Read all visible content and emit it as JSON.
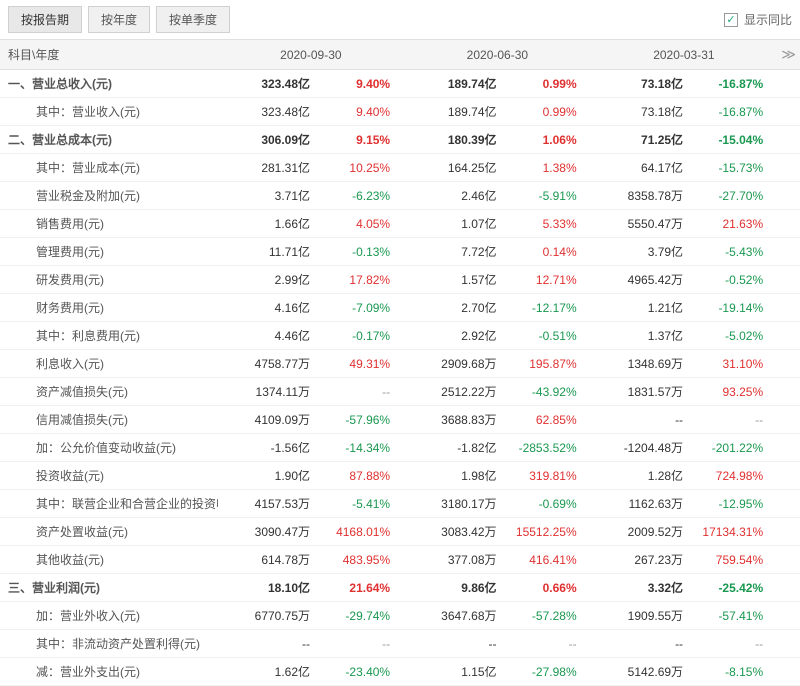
{
  "tabs": {
    "t0": "按报告期",
    "t1": "按年度",
    "t2": "按单季度"
  },
  "show_yoy_label": "显示同比",
  "header": {
    "label": "科目\\年度",
    "p0": "2020-09-30",
    "p1": "2020-06-30",
    "p2": "2020-03-31"
  },
  "rows": [
    {
      "label": "一、营业总收入(元)",
      "bold": true,
      "indent": 0,
      "v0": "323.48亿",
      "c0": "9.40%",
      "s0": "red",
      "v1": "189.74亿",
      "c1": "0.99%",
      "s1": "red",
      "v2": "73.18亿",
      "c2": "-16.87%",
      "s2": "green"
    },
    {
      "label": "其中：营业收入(元)",
      "indent": 1,
      "v0": "323.48亿",
      "c0": "9.40%",
      "s0": "red",
      "v1": "189.74亿",
      "c1": "0.99%",
      "s1": "red",
      "v2": "73.18亿",
      "c2": "-16.87%",
      "s2": "green"
    },
    {
      "label": "二、营业总成本(元)",
      "bold": true,
      "indent": 0,
      "v0": "306.09亿",
      "c0": "9.15%",
      "s0": "red",
      "v1": "180.39亿",
      "c1": "1.06%",
      "s1": "red",
      "v2": "71.25亿",
      "c2": "-15.04%",
      "s2": "green"
    },
    {
      "label": "其中：营业成本(元)",
      "indent": 1,
      "v0": "281.31亿",
      "c0": "10.25%",
      "s0": "red",
      "v1": "164.25亿",
      "c1": "1.38%",
      "s1": "red",
      "v2": "64.17亿",
      "c2": "-15.73%",
      "s2": "green"
    },
    {
      "label": "营业税金及附加(元)",
      "indent": 2,
      "v0": "3.71亿",
      "c0": "-6.23%",
      "s0": "green",
      "v1": "2.46亿",
      "c1": "-5.91%",
      "s1": "green",
      "v2": "8358.78万",
      "c2": "-27.70%",
      "s2": "green"
    },
    {
      "label": "销售费用(元)",
      "indent": 2,
      "v0": "1.66亿",
      "c0": "4.05%",
      "s0": "red",
      "v1": "1.07亿",
      "c1": "5.33%",
      "s1": "red",
      "v2": "5550.47万",
      "c2": "21.63%",
      "s2": "red"
    },
    {
      "label": "管理费用(元)",
      "indent": 2,
      "v0": "11.71亿",
      "c0": "-0.13%",
      "s0": "green",
      "v1": "7.72亿",
      "c1": "0.14%",
      "s1": "red",
      "v2": "3.79亿",
      "c2": "-5.43%",
      "s2": "green"
    },
    {
      "label": "研发费用(元)",
      "indent": 2,
      "v0": "2.99亿",
      "c0": "17.82%",
      "s0": "red",
      "v1": "1.57亿",
      "c1": "12.71%",
      "s1": "red",
      "v2": "4965.42万",
      "c2": "-0.52%",
      "s2": "green"
    },
    {
      "label": "财务费用(元)",
      "indent": 2,
      "v0": "4.16亿",
      "c0": "-7.09%",
      "s0": "green",
      "v1": "2.70亿",
      "c1": "-12.17%",
      "s1": "green",
      "v2": "1.21亿",
      "c2": "-19.14%",
      "s2": "green"
    },
    {
      "label": "其中：利息费用(元)",
      "indent": 2,
      "v0": "4.46亿",
      "c0": "-0.17%",
      "s0": "green",
      "v1": "2.92亿",
      "c1": "-0.51%",
      "s1": "green",
      "v2": "1.37亿",
      "c2": "-5.02%",
      "s2": "green"
    },
    {
      "label": "利息收入(元)",
      "indent": 2,
      "v0": "4758.77万",
      "c0": "49.31%",
      "s0": "red",
      "v1": "2909.68万",
      "c1": "195.87%",
      "s1": "red",
      "v2": "1348.69万",
      "c2": "31.10%",
      "s2": "red"
    },
    {
      "label": "资产减值损失(元)",
      "indent": 2,
      "v0": "1374.11万",
      "c0": "--",
      "s0": "dash",
      "v1": "2512.22万",
      "c1": "-43.92%",
      "s1": "green",
      "v2": "1831.57万",
      "c2": "93.25%",
      "s2": "red"
    },
    {
      "label": "信用减值损失(元)",
      "indent": 2,
      "v0": "4109.09万",
      "c0": "-57.96%",
      "s0": "green",
      "v1": "3688.83万",
      "c1": "62.85%",
      "s1": "red",
      "v2": "--",
      "c2": "--",
      "s2": "dash"
    },
    {
      "label": "加：公允价值变动收益(元)",
      "indent": 2,
      "v0": "-1.56亿",
      "c0": "-14.34%",
      "s0": "green",
      "v1": "-1.82亿",
      "c1": "-2853.52%",
      "s1": "green",
      "v2": "-1204.48万",
      "c2": "-201.22%",
      "s2": "green"
    },
    {
      "label": "投资收益(元)",
      "indent": 2,
      "v0": "1.90亿",
      "c0": "87.88%",
      "s0": "red",
      "v1": "1.98亿",
      "c1": "319.81%",
      "s1": "red",
      "v2": "1.28亿",
      "c2": "724.98%",
      "s2": "red"
    },
    {
      "label": "其中：联营企业和合营企业的投资收益(元)",
      "indent": 2,
      "v0": "4157.53万",
      "c0": "-5.41%",
      "s0": "green",
      "v1": "3180.17万",
      "c1": "-0.69%",
      "s1": "green",
      "v2": "1162.63万",
      "c2": "-12.95%",
      "s2": "green"
    },
    {
      "label": "资产处置收益(元)",
      "indent": 2,
      "v0": "3090.47万",
      "c0": "4168.01%",
      "s0": "red",
      "v1": "3083.42万",
      "c1": "15512.25%",
      "s1": "red",
      "v2": "2009.52万",
      "c2": "17134.31%",
      "s2": "red"
    },
    {
      "label": "其他收益(元)",
      "indent": 2,
      "v0": "614.78万",
      "c0": "483.95%",
      "s0": "red",
      "v1": "377.08万",
      "c1": "416.41%",
      "s1": "red",
      "v2": "267.23万",
      "c2": "759.54%",
      "s2": "red"
    },
    {
      "label": "三、营业利润(元)",
      "bold": true,
      "indent": 0,
      "v0": "18.10亿",
      "c0": "21.64%",
      "s0": "red",
      "v1": "9.86亿",
      "c1": "0.66%",
      "s1": "red",
      "v2": "3.32亿",
      "c2": "-25.42%",
      "s2": "green"
    },
    {
      "label": "加：营业外收入(元)",
      "indent": 2,
      "v0": "6770.75万",
      "c0": "-29.74%",
      "s0": "green",
      "v1": "3647.68万",
      "c1": "-57.28%",
      "s1": "green",
      "v2": "1909.55万",
      "c2": "-57.41%",
      "s2": "green"
    },
    {
      "label": "其中：非流动资产处置利得(元)",
      "indent": 2,
      "v0": "--",
      "c0": "--",
      "s0": "dash",
      "v1": "--",
      "c1": "--",
      "s1": "dash",
      "v2": "--",
      "c2": "--",
      "s2": "dash"
    },
    {
      "label": "减：营业外支出(元)",
      "indent": 2,
      "v0": "1.62亿",
      "c0": "-23.40%",
      "s0": "green",
      "v1": "1.15亿",
      "c1": "-27.98%",
      "s1": "green",
      "v2": "5142.69万",
      "c2": "-8.15%",
      "s2": "green"
    }
  ]
}
